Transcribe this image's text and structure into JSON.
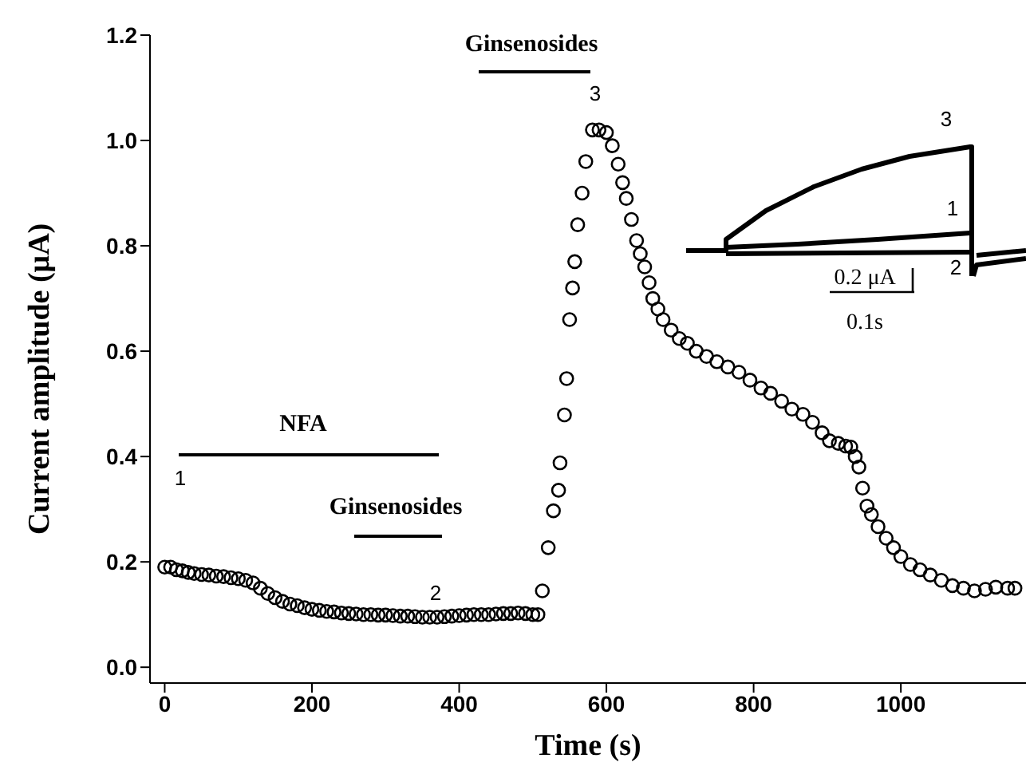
{
  "chart_data": {
    "type": "scatter",
    "xlabel": "Time (s)",
    "ylabel": "Current amplitude (μA)",
    "x": [
      0,
      8,
      16,
      24,
      32,
      40,
      50,
      60,
      70,
      80,
      90,
      100,
      110,
      120,
      130,
      140,
      150,
      160,
      170,
      180,
      190,
      200,
      210,
      220,
      230,
      240,
      250,
      260,
      270,
      280,
      290,
      300,
      310,
      320,
      330,
      340,
      350,
      360,
      370,
      380,
      390,
      400,
      410,
      420,
      430,
      440,
      450,
      460,
      470,
      480,
      490,
      500,
      507,
      513,
      521,
      528,
      535,
      537,
      543,
      546,
      550,
      554,
      557,
      561,
      567,
      572,
      581,
      590,
      600,
      608,
      616,
      622,
      627,
      634,
      641,
      646,
      652,
      658,
      663,
      670,
      677,
      688,
      699,
      710,
      722,
      736,
      750,
      765,
      780,
      795,
      810,
      823,
      838,
      852,
      867,
      880,
      893,
      903,
      915,
      925,
      932,
      938,
      943,
      948,
      954,
      960,
      969,
      980,
      990,
      1000,
      1013,
      1026,
      1040,
      1055,
      1070,
      1085,
      1100,
      1115,
      1129,
      1145,
      1155
    ],
    "series": [
      {
        "color": "#000000",
        "values": [
          0.19,
          0.19,
          0.185,
          0.183,
          0.18,
          0.178,
          0.176,
          0.175,
          0.173,
          0.172,
          0.17,
          0.168,
          0.165,
          0.16,
          0.15,
          0.14,
          0.132,
          0.125,
          0.12,
          0.117,
          0.113,
          0.11,
          0.108,
          0.106,
          0.105,
          0.103,
          0.102,
          0.101,
          0.1,
          0.1,
          0.099,
          0.099,
          0.098,
          0.097,
          0.097,
          0.096,
          0.095,
          0.095,
          0.095,
          0.096,
          0.097,
          0.098,
          0.099,
          0.1,
          0.1,
          0.1,
          0.101,
          0.102,
          0.102,
          0.103,
          0.102,
          0.1,
          0.1,
          0.145,
          0.227,
          0.297,
          0.336,
          0.388,
          0.479,
          0.548,
          0.66,
          0.72,
          0.77,
          0.84,
          0.9,
          0.96,
          1.02,
          1.02,
          1.015,
          0.99,
          0.955,
          0.92,
          0.89,
          0.85,
          0.81,
          0.785,
          0.76,
          0.73,
          0.7,
          0.68,
          0.66,
          0.64,
          0.624,
          0.615,
          0.6,
          0.59,
          0.58,
          0.57,
          0.56,
          0.545,
          0.53,
          0.52,
          0.505,
          0.49,
          0.48,
          0.465,
          0.445,
          0.43,
          0.425,
          0.42,
          0.418,
          0.4,
          0.38,
          0.34,
          0.306,
          0.29,
          0.267,
          0.245,
          0.227,
          0.21,
          0.195,
          0.185,
          0.175,
          0.165,
          0.155,
          0.15,
          0.145,
          0.148,
          0.152,
          0.15,
          0.15
        ]
      }
    ],
    "marker": "circle",
    "xlim": [
      -20,
      1170
    ],
    "xticks": [
      0,
      200,
      400,
      600,
      800,
      1000
    ],
    "ylim": [
      -0.03,
      1.2
    ],
    "yticks": [
      {
        "value": 0,
        "label": "0.0"
      },
      {
        "value": 0.2,
        "label": "0.2"
      },
      {
        "value": 0.4,
        "label": "0.4"
      },
      {
        "value": 0.6,
        "label": "0.6"
      },
      {
        "value": 0.8,
        "label": "0.8"
      },
      {
        "value": 1.0,
        "label": "1.0"
      },
      {
        "value": 1.2,
        "label": "1.2"
      }
    ],
    "annotations": [
      "1",
      "2",
      "3",
      "NFA",
      "Ginsenosides",
      "Ginsenosides",
      "3",
      "1",
      "2",
      "0.2 μA",
      "0.1s"
    ]
  }
}
